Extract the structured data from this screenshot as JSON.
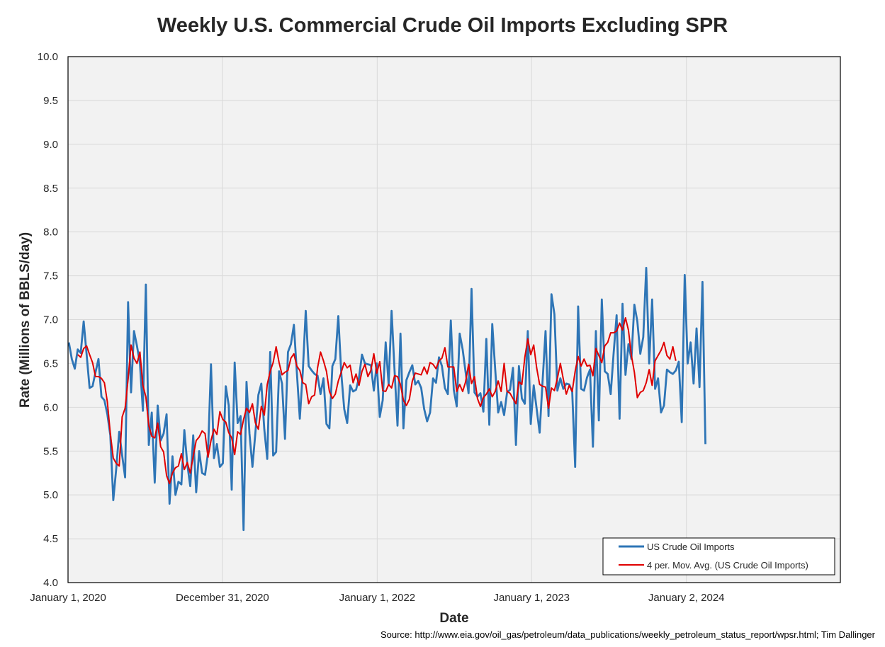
{
  "chart_data": {
    "type": "line",
    "title": "Weekly U.S. Commercial Crude Oil Imports Excluding SPR",
    "xlabel": "Date",
    "ylabel": "Rate (Millions of BBLS/day)",
    "ylim": [
      4.0,
      10.0
    ],
    "xlim": [
      "2020-01-01",
      "2024-12-31"
    ],
    "yticks": [
      "4.0",
      "4.5",
      "5.0",
      "5.5",
      "6.0",
      "6.5",
      "7.0",
      "7.5",
      "8.0",
      "8.5",
      "9.0",
      "9.5",
      "10.0"
    ],
    "xticks": [
      {
        "date": "2020-01-01",
        "label": "January 1, 2020"
      },
      {
        "date": "2020-12-31",
        "label": "December 31, 2020"
      },
      {
        "date": "2022-01-01",
        "label": "January 1, 2022"
      },
      {
        "date": "2023-01-01",
        "label": "January 1, 2023"
      },
      {
        "date": "2024-01-02",
        "label": "January 2, 2024"
      }
    ],
    "grid": true,
    "legend_position": "bottom-right",
    "start_date": "2020-01-03",
    "interval_days": 7,
    "series": [
      {
        "name": "US Crude Oil Imports",
        "color": "#2e75b6",
        "values": [
          6.74,
          6.55,
          6.44,
          6.66,
          6.62,
          6.98,
          6.6,
          6.22,
          6.24,
          6.4,
          6.55,
          6.12,
          6.08,
          5.92,
          5.68,
          4.94,
          5.3,
          5.72,
          5.45,
          5.2,
          7.2,
          6.17,
          6.87,
          6.7,
          6.5,
          5.96,
          7.4,
          5.57,
          5.94,
          5.14,
          6.02,
          5.62,
          5.7,
          5.92,
          4.9,
          5.44,
          5.0,
          5.15,
          5.12,
          5.74,
          5.35,
          5.1,
          5.68,
          5.03,
          5.5,
          5.25,
          5.23,
          5.48,
          6.49,
          5.42,
          5.58,
          5.32,
          5.36,
          6.24,
          6.02,
          5.06,
          6.51,
          5.82,
          5.9,
          4.6,
          6.29,
          5.7,
          5.32,
          5.71,
          6.14,
          6.27,
          5.75,
          5.41,
          6.63,
          5.45,
          5.49,
          6.41,
          6.27,
          5.64,
          6.63,
          6.72,
          6.94,
          6.4,
          5.87,
          6.4,
          7.1,
          6.47,
          6.42,
          6.38,
          6.36,
          6.15,
          6.33,
          5.81,
          5.76,
          6.47,
          6.55,
          7.04,
          6.39,
          5.98,
          5.82,
          6.25,
          6.18,
          6.2,
          6.34,
          6.6,
          6.5,
          6.49,
          6.48,
          6.19,
          6.5,
          5.89,
          6.08,
          6.74,
          6.26,
          7.1,
          6.42,
          5.79,
          6.84,
          5.76,
          6.31,
          6.4,
          6.48,
          6.26,
          6.3,
          6.22,
          5.98,
          5.84,
          5.94,
          6.33,
          6.28,
          6.57,
          6.47,
          6.22,
          6.15,
          6.99,
          6.2,
          6.01,
          6.84,
          6.66,
          6.4,
          6.16,
          7.35,
          6.17,
          6.12,
          6.16,
          5.95,
          6.78,
          5.8,
          6.95,
          6.43,
          5.94,
          6.06,
          5.91,
          6.17,
          6.2,
          6.45,
          5.57,
          6.47,
          6.1,
          6.04,
          6.87,
          5.81,
          6.25,
          5.98,
          5.71,
          6.3,
          6.87,
          5.9,
          7.29,
          7.06,
          6.19,
          6.33,
          6.21,
          6.27,
          6.26,
          6.18,
          5.32,
          7.15,
          6.21,
          6.19,
          6.34,
          6.43,
          5.55,
          6.87,
          5.85,
          7.23,
          6.41,
          6.38,
          6.15,
          6.62,
          7.05,
          5.87,
          7.18,
          6.37,
          6.72,
          6.55,
          7.17,
          6.98,
          6.61,
          6.8,
          7.59,
          6.5,
          7.23,
          6.21,
          6.33,
          5.94,
          6.02,
          6.43,
          6.4,
          6.38,
          6.42,
          6.52,
          5.83,
          7.51,
          6.5,
          6.74,
          6.27,
          6.9,
          6.23,
          7.43,
          5.58
        ]
      },
      {
        "name": "4 per. Mov. Avg. (US Crude Oil Imports)",
        "color": "#e00000",
        "start_index": 3,
        "values": [
          6.6,
          6.57,
          6.67,
          6.7,
          6.6,
          6.51,
          6.35,
          6.35,
          6.33,
          6.28,
          6.06,
          5.7,
          5.42,
          5.36,
          5.33,
          5.89,
          5.99,
          6.32,
          6.71,
          6.56,
          6.5,
          6.63,
          6.25,
          6.12,
          5.79,
          5.67,
          5.65,
          5.82,
          5.55,
          5.49,
          5.22,
          5.13,
          5.25,
          5.31,
          5.33,
          5.47,
          5.29,
          5.37,
          5.25,
          5.44,
          5.62,
          5.66,
          5.73,
          5.7,
          5.43,
          5.62,
          5.75,
          5.69,
          5.95,
          5.86,
          5.83,
          5.71,
          5.65,
          5.46,
          5.72,
          5.69,
          5.86,
          5.99,
          5.94,
          6.04,
          5.82,
          5.75,
          6.01,
          5.91,
          6.26,
          6.41,
          6.51,
          6.69,
          6.51,
          6.37,
          6.4,
          6.42,
          6.56,
          6.61,
          6.47,
          6.42,
          6.28,
          6.26,
          6.04,
          6.12,
          6.14,
          6.45,
          6.63,
          6.53,
          6.41,
          6.18,
          6.1,
          6.15,
          6.3,
          6.4,
          6.51,
          6.45,
          6.48,
          6.28,
          6.38,
          6.25,
          6.41,
          6.49,
          6.35,
          6.42,
          6.61,
          6.39,
          6.52,
          6.19,
          6.18,
          6.26,
          6.22,
          6.36,
          6.35,
          6.26,
          6.08,
          6.02,
          6.09,
          6.3,
          6.39,
          6.38,
          6.37,
          6.46,
          6.38,
          6.51,
          6.49,
          6.44,
          6.53,
          6.56,
          6.68,
          6.46,
          6.46,
          6.46,
          6.18,
          6.26,
          6.18,
          6.29,
          6.49,
          6.27,
          6.35,
          6.1,
          6.01,
          6.11,
          6.15,
          6.21,
          6.12,
          6.18,
          6.3,
          6.18,
          6.5,
          6.18,
          6.16,
          6.1,
          6.04,
          6.29,
          6.26,
          6.57,
          6.78,
          6.6,
          6.71,
          6.45,
          6.26,
          6.24,
          6.23,
          5.99,
          6.22,
          6.19,
          6.33,
          6.5,
          6.32,
          6.15,
          6.25,
          6.18,
          6.41,
          6.58,
          6.47,
          6.55,
          6.47,
          6.48,
          6.36,
          6.67,
          6.59,
          6.51,
          6.7,
          6.74,
          6.85,
          6.85,
          6.87,
          6.96,
          6.88,
          7.02,
          6.88,
          6.59,
          6.4,
          6.11,
          6.17,
          6.19,
          6.28,
          6.43,
          6.25,
          6.53,
          6.59,
          6.65,
          6.74,
          6.59,
          6.55,
          6.69,
          6.53
        ]
      }
    ]
  },
  "source": "Source: http://www.eia.gov/oil_gas/petroleum/data_publications/weekly_petroleum_status_report/wpsr.html; Tim Dallinger"
}
